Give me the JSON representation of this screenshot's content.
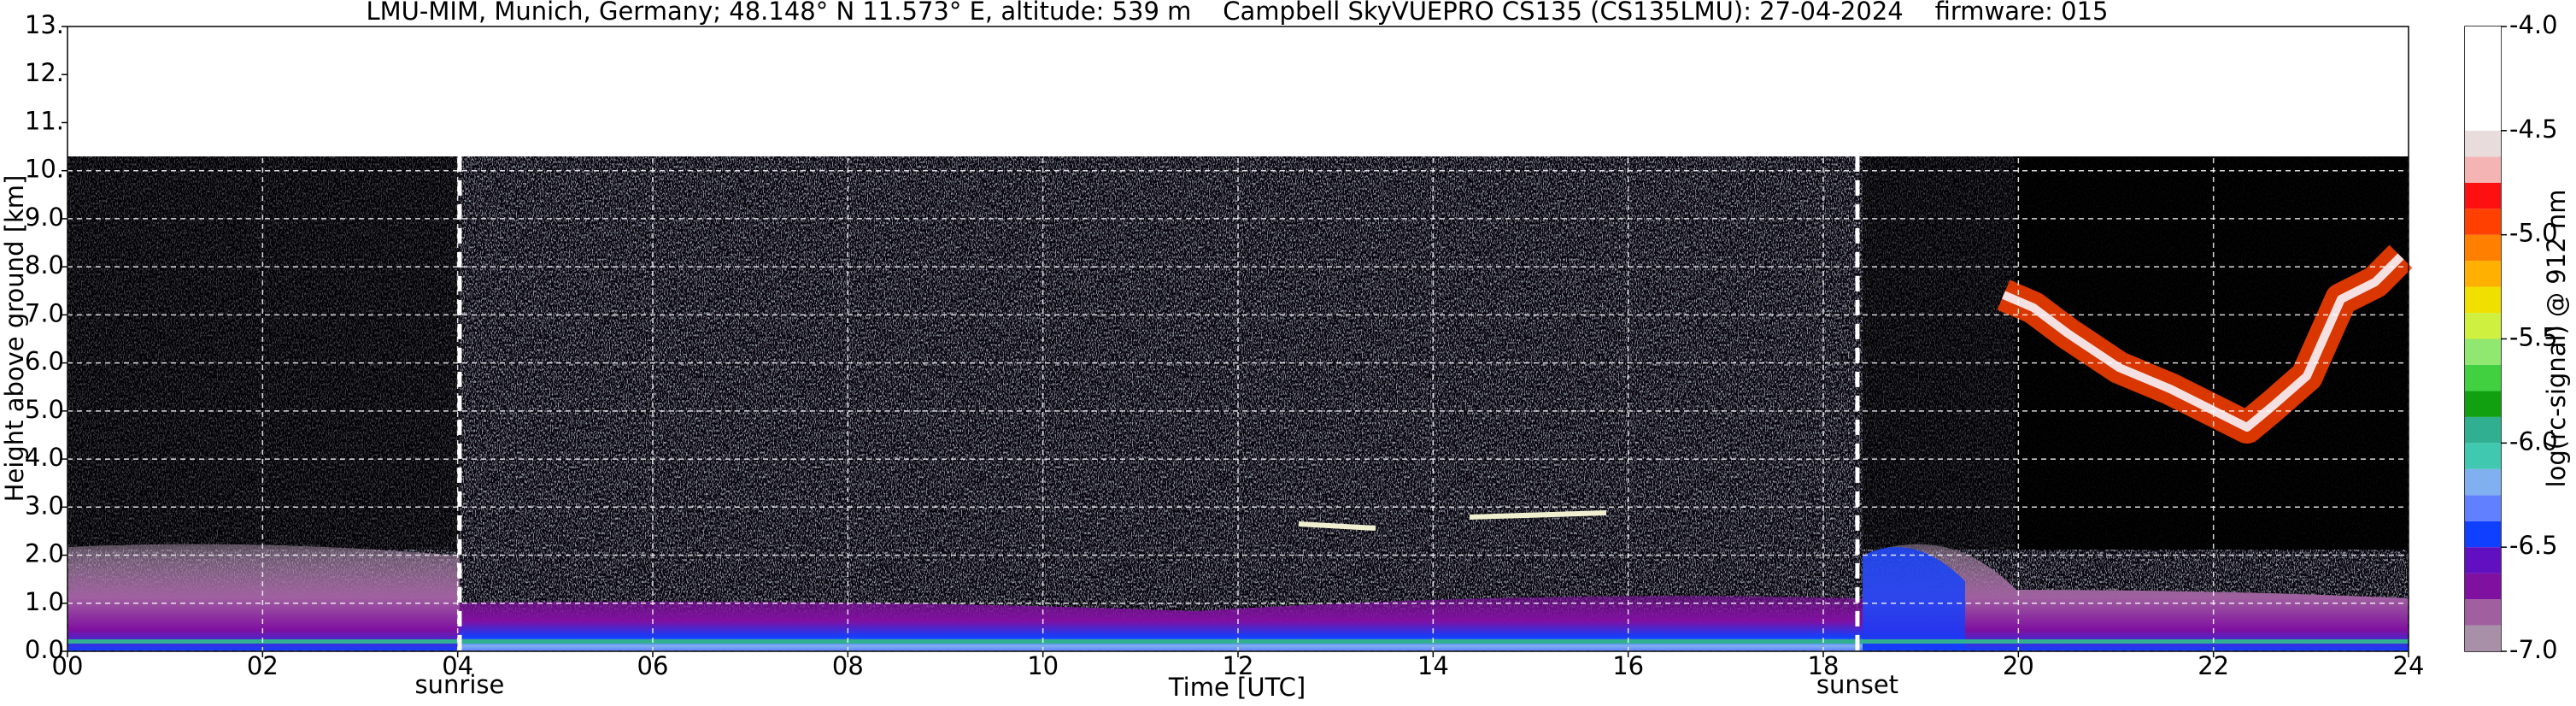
{
  "chart_data": {
    "type": "heatmap",
    "title": "LMU-MIM, Munich, Germany; 48.148° N 11.573° E, altitude: 539 m    Campbell SkyVUEPRO CS135 (CS135LMU): 27-04-2024    firmware: 015",
    "x_label": "Time [UTC]",
    "y_label": "Height above ground [km]",
    "xlim": [
      0,
      24
    ],
    "xticks": [
      {
        "value": 0,
        "label": "00"
      },
      {
        "value": 2,
        "label": "02"
      },
      {
        "value": 4,
        "label": "04"
      },
      {
        "value": 6,
        "label": "06"
      },
      {
        "value": 8,
        "label": "08"
      },
      10,
      12,
      14,
      16,
      18,
      20,
      22,
      24
    ],
    "ylim": [
      0,
      13
    ],
    "yticks": [
      {
        "value": 0,
        "label": "0.0"
      },
      {
        "value": 1,
        "label": "1.0"
      },
      {
        "value": 2,
        "label": "2.0"
      },
      {
        "value": 3,
        "label": "3.0"
      },
      {
        "value": 4,
        "label": "4.0"
      },
      {
        "value": 5,
        "label": "5.0"
      },
      {
        "value": 6,
        "label": "6.0"
      },
      {
        "value": 7,
        "label": "7.0"
      },
      {
        "value": 8,
        "label": "8.0"
      },
      {
        "value": 9,
        "label": "9.0"
      },
      {
        "value": 10,
        "label": "10."
      },
      {
        "value": 11,
        "label": "11."
      },
      {
        "value": 12,
        "label": "12."
      },
      {
        "value": 13,
        "label": "13."
      }
    ],
    "grid": true,
    "annotations": [
      {
        "x": 4.02,
        "label": "sunrise"
      },
      {
        "x": 18.35,
        "label": "sunset"
      }
    ],
    "colorbar": {
      "label": "log(rc-signal) @ 912 nm",
      "lim": [
        -7.0,
        -4.0
      ],
      "ticks": [
        {
          "value": -7.0,
          "label": "-7.0"
        },
        {
          "value": -6.5,
          "label": "-6.5"
        },
        {
          "value": -6.0,
          "label": "-6.0"
        },
        {
          "value": -5.5,
          "label": "-5.5"
        },
        {
          "value": -5.0,
          "label": "-5.0"
        },
        {
          "value": -4.5,
          "label": "-4.5"
        },
        {
          "value": -4.0,
          "label": "-4.0"
        }
      ],
      "bounds": [
        -7.0,
        -6.875,
        -6.75,
        -6.625,
        -6.5,
        -6.375,
        -6.25,
        -6.125,
        -6.0,
        -5.875,
        -5.75,
        -5.625,
        -5.5,
        -5.375,
        -5.25,
        -5.125,
        -5.0,
        -4.875,
        -4.75,
        -4.625,
        -4.5,
        -4.0
      ],
      "colors": [
        "#a890a8",
        "#a060a0",
        "#8010a0",
        "#6010c0",
        "#1040ff",
        "#6080ff",
        "#80b0f0",
        "#40c8b0",
        "#30b090",
        "#10a010",
        "#40d040",
        "#90e870",
        "#d0f040",
        "#f0e000",
        "#ffb000",
        "#ff8000",
        "#ff4000",
        "#ff1010",
        "#f4b4b4",
        "#e8dcdc",
        "#ffffff"
      ]
    }
  }
}
